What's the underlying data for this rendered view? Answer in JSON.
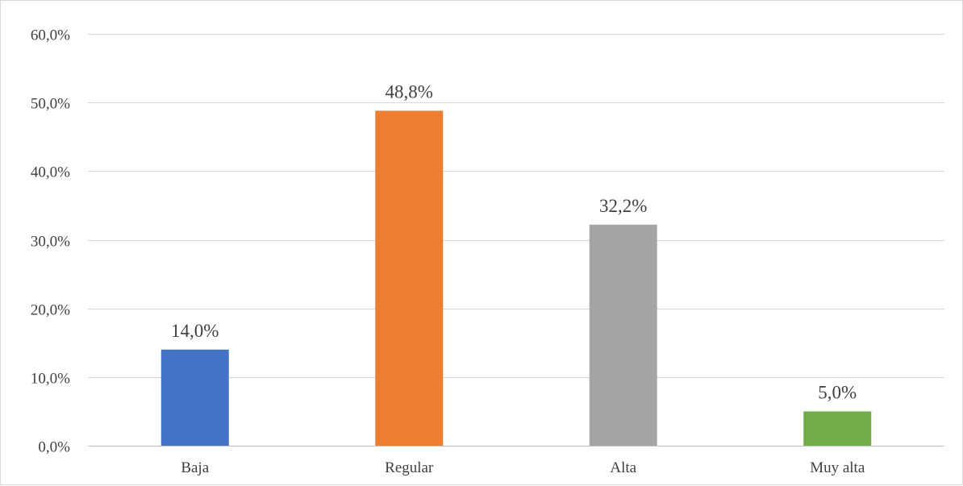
{
  "chart_data": {
    "type": "bar",
    "title": "",
    "xlabel": "",
    "ylabel": "",
    "categories": [
      "Baja",
      "Regular",
      "Alta",
      "Muy alta"
    ],
    "values": [
      14.0,
      48.8,
      32.2,
      5.0
    ],
    "data_labels": [
      "14,0%",
      "48,8%",
      "32,2%",
      "5,0%"
    ],
    "colors": [
      "#4472c4",
      "#ed7d31",
      "#a5a5a5",
      "#70ad47"
    ],
    "ylim": [
      0,
      60
    ],
    "yticks": [
      0,
      10,
      20,
      30,
      40,
      50,
      60
    ],
    "ytick_labels": [
      "0,0%",
      "10,0%",
      "20,0%",
      "30,0%",
      "40,0%",
      "50,0%",
      "60,0%"
    ],
    "grid": true,
    "legend": "none"
  }
}
